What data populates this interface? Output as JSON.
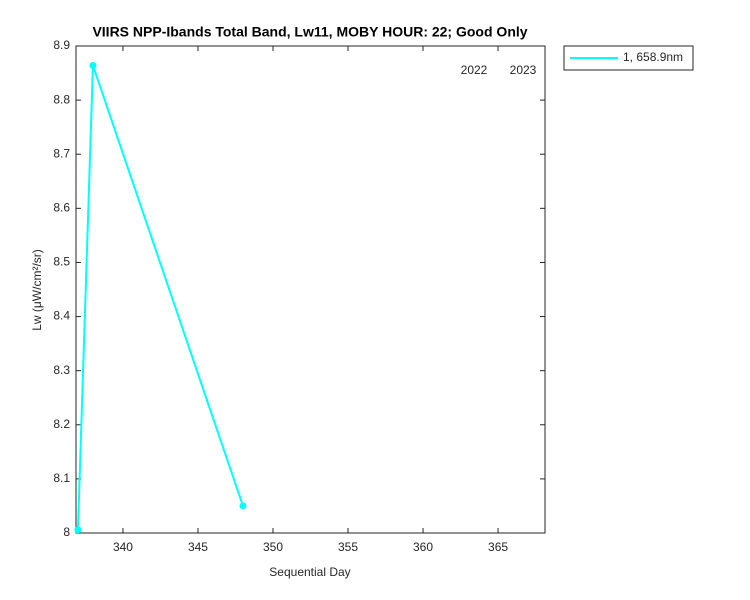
{
  "chart_data": {
    "type": "line",
    "title": "VIIRS NPP-Ibands Total Band,  Lw11, MOBY HOUR: 22;  Good Only",
    "xlabel": "Sequential Day",
    "ylabel": "Lw (μW/cm²/sr)",
    "x": [
      337,
      338,
      348
    ],
    "series": [
      {
        "name": "1, 658.9nm",
        "color": "#00ffff",
        "values": [
          8.006,
          8.864,
          8.05
        ]
      }
    ],
    "annotations": [
      "2022",
      "2023"
    ],
    "xlim": [
      336.87,
      368.13
    ],
    "xticks": [
      340,
      345,
      350,
      355,
      360,
      365
    ],
    "ylim": [
      8,
      8.9
    ],
    "yticks": [
      8,
      8.1,
      8.2,
      8.3,
      8.4,
      8.5,
      8.6,
      8.7,
      8.8,
      8.9
    ],
    "grid": false,
    "legend": "outside-top-right"
  }
}
